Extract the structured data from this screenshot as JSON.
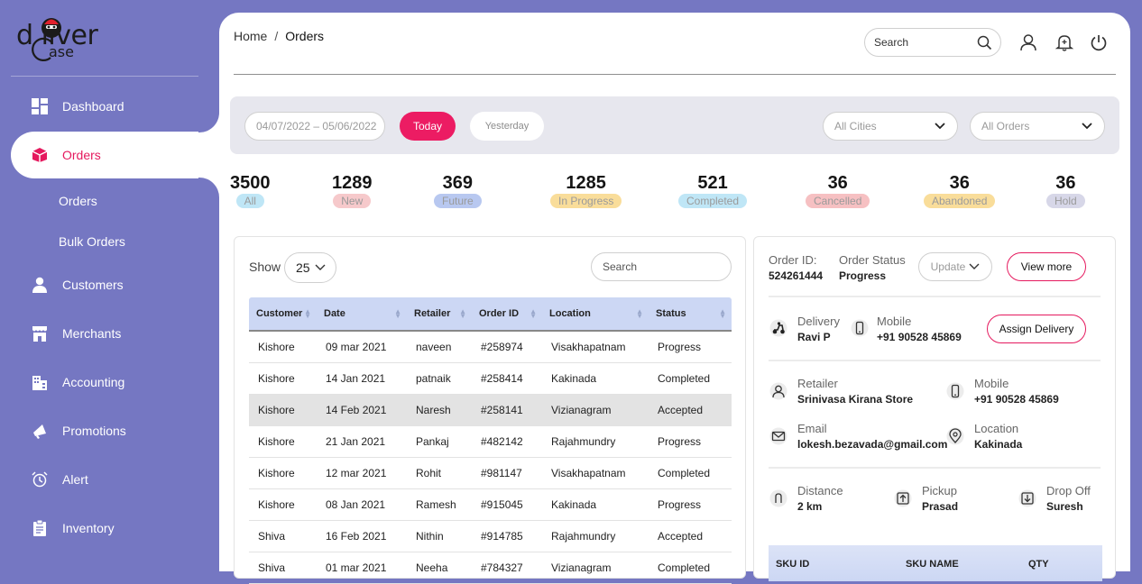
{
  "brand": {
    "logo_top": "d  liver",
    "logo_bottom": "ase"
  },
  "sidebar": {
    "items": [
      {
        "label": "Dashboard",
        "icon": "dashboard-icon"
      },
      {
        "label": "Orders",
        "icon": "box-icon",
        "active": true
      },
      {
        "label": "Customers",
        "icon": "user-icon"
      },
      {
        "label": "Merchants",
        "icon": "store-icon"
      },
      {
        "label": "Accounting",
        "icon": "building-icon"
      },
      {
        "label": "Promotions",
        "icon": "megaphone-icon"
      },
      {
        "label": "Alert",
        "icon": "alarm-icon"
      },
      {
        "label": "Inventory",
        "icon": "clipboard-icon"
      }
    ],
    "sub_items": [
      "Orders",
      "Bulk Orders"
    ]
  },
  "header": {
    "breadcrumb": {
      "home": "Home",
      "separator": "/",
      "current": "Orders"
    },
    "search_placeholder": "Search"
  },
  "filters": {
    "date_range": "04/07/2022 – 05/06/2022",
    "today": "Today",
    "yesterday": "Yesterday",
    "city": "All Cities",
    "orders": "All Orders"
  },
  "stats": [
    {
      "value": "3500",
      "label": "All",
      "bg": "#bfe6f6"
    },
    {
      "value": "1289",
      "label": "New",
      "bg": "#f6c9cb"
    },
    {
      "value": "369",
      "label": "Future",
      "bg": "#b8c8f0"
    },
    {
      "value": "1285",
      "label": "In Progress",
      "bg": "#f9dd9a"
    },
    {
      "value": "521",
      "label": "Completed",
      "bg": "#bfe6f6"
    },
    {
      "value": "36",
      "label": "Cancelled",
      "bg": "#f6c0c2"
    },
    {
      "value": "36",
      "label": "Abandoned",
      "bg": "#f9dd9a"
    },
    {
      "value": "36",
      "label": "Hold",
      "bg": "#d7d7e8"
    }
  ],
  "orders_table": {
    "show_label": "Show",
    "page_size": "25",
    "search_placeholder": "Search",
    "columns": [
      "Customer",
      "Date",
      "Retailer",
      "Order ID",
      "Location",
      "Status"
    ],
    "rows": [
      [
        "Kishore",
        "09 mar 2021",
        "naveen",
        "#258974",
        "Visakhapatnam",
        "Progress"
      ],
      [
        "Kishore",
        "14 Jan 2021",
        "patnaik",
        "#258414",
        "Kakinada",
        "Completed"
      ],
      [
        "Kishore",
        "14 Feb 2021",
        "Naresh",
        "#258141",
        "Vizianagram",
        "Accepted"
      ],
      [
        "Kishore",
        "21 Jan 2021",
        "Pankaj",
        "#482142",
        "Rajahmundry",
        "Progress"
      ],
      [
        "Kishore",
        "12 mar 2021",
        "Rohit",
        "#981147",
        "Visakhapatnam",
        "Completed"
      ],
      [
        "Kishore",
        "08 Jan 2021",
        "Ramesh",
        "#915045",
        "Kakinada",
        "Progress"
      ],
      [
        "Shiva",
        "16 Feb 2021",
        "Nithin",
        "#914785",
        "Rajahmundry",
        "Accepted"
      ],
      [
        "Shiva",
        "01 mar 2021",
        "Neeha",
        "#784327",
        "Vizianagram",
        "Completed"
      ]
    ]
  },
  "order_detail": {
    "order_id_label": "Order ID:",
    "order_id": "524261444",
    "status_label": "Order Status",
    "status": "Progress",
    "update": "Update",
    "view_more": "View more",
    "delivery_label": "Delivery",
    "delivery_name": "Ravi P",
    "mobile_label": "Mobile",
    "delivery_mobile": "+91 90528 45869",
    "assign_delivery": "Assign Delivery",
    "retailer_label": "Retailer",
    "retailer": "Srinivasa Kirana Store",
    "retailer_mobile_label": "Mobile",
    "retailer_mobile": "+91 90528 45869",
    "email_label": "Email",
    "email": "lokesh.bezavada@gmail.com",
    "location_label": "Location",
    "location": "Kakinada",
    "distance_label": "Distance",
    "distance": "2 km",
    "pickup_label": "Pickup",
    "pickup": "Prasad",
    "dropoff_label": "Drop Off",
    "dropoff": "Suresh",
    "sku_columns": [
      "SKU ID",
      "SKU NAME",
      "QTY"
    ]
  },
  "colors": {
    "sidebar": "#7577c2",
    "accent": "#ec1c63",
    "table_header": "#ccd7f4"
  }
}
